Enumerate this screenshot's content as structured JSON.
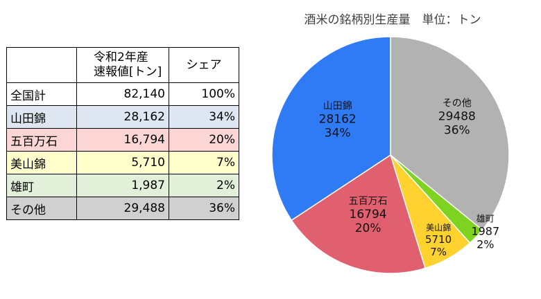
{
  "table": {
    "header": {
      "name": "",
      "value_line1": "令和2年産",
      "value_line2": "速報値[トン]",
      "share": "シェア"
    },
    "rows": [
      {
        "name": "全国計",
        "value": "82,140",
        "share": "100%",
        "bg": "#ffffff"
      },
      {
        "name": "山田錦",
        "value": "28,162",
        "share": "34%",
        "bg": "#dde6f1"
      },
      {
        "name": "五百万石",
        "value": "16,794",
        "share": "20%",
        "bg": "#fcd5d5"
      },
      {
        "name": "美山錦",
        "value": "5,710",
        "share": "7%",
        "bg": "#ffffcc"
      },
      {
        "name": "雄町",
        "value": "1,987",
        "share": "2%",
        "bg": "#e2efd9"
      },
      {
        "name": "その他",
        "value": "29,488",
        "share": "36%",
        "bg": "#d0d0d0"
      }
    ]
  },
  "chart_data": {
    "type": "pie",
    "title": "酒米の銘柄別生産量　単位：トン",
    "slices": [
      {
        "name": "その他",
        "value": 29488,
        "percent": "36%",
        "color": "#b2b2b2"
      },
      {
        "name": "雄町",
        "value": 1987,
        "percent": "2%",
        "color": "#7ed321"
      },
      {
        "name": "美山錦",
        "value": 5710,
        "percent": "7%",
        "color": "#ffd230"
      },
      {
        "name": "五百万石",
        "value": 16794,
        "percent": "20%",
        "color": "#e06070"
      },
      {
        "name": "山田錦",
        "value": 28162,
        "percent": "34%",
        "color": "#2f7bf5"
      }
    ]
  }
}
